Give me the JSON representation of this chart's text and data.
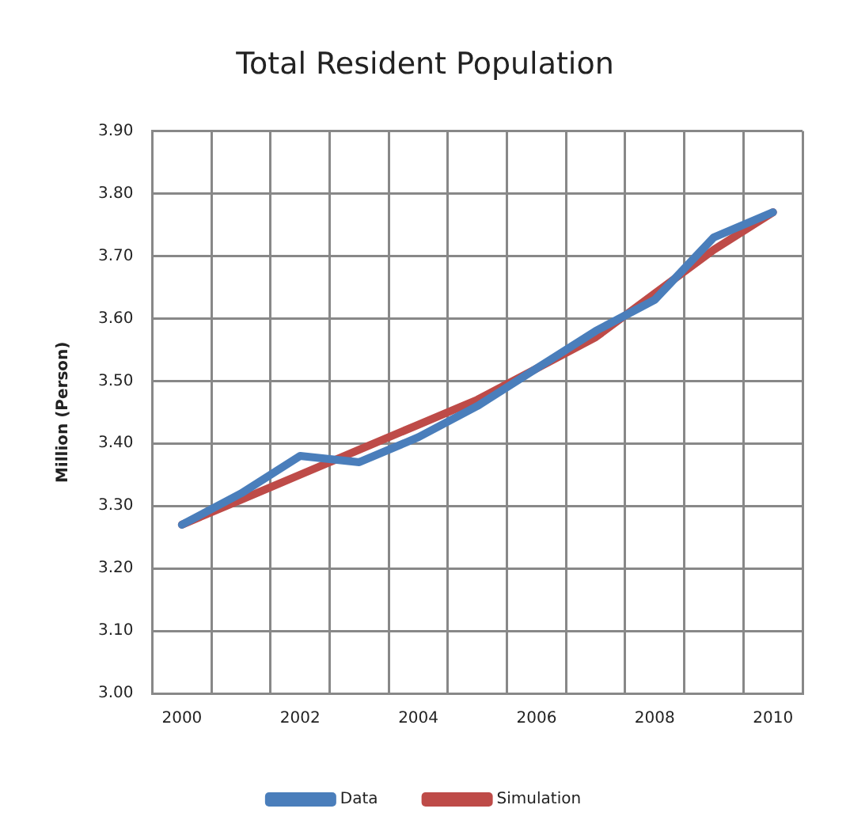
{
  "chart_data": {
    "type": "line",
    "title": "Total Resident Population",
    "ylabel": "Million (Person)",
    "categories": [
      "2000",
      null,
      "2002",
      null,
      "2004",
      null,
      "2006",
      null,
      "2008",
      null,
      "2010"
    ],
    "series": [
      {
        "name": "Data",
        "color": "#4a7ebb",
        "values": [
          3.27,
          3.32,
          3.38,
          3.37,
          3.41,
          3.46,
          3.52,
          3.58,
          3.63,
          3.73,
          3.77
        ]
      },
      {
        "name": "Simulation",
        "color": "#be4b48",
        "values": [
          3.27,
          3.31,
          3.35,
          3.39,
          3.43,
          3.47,
          3.52,
          3.57,
          3.64,
          3.71,
          3.77
        ]
      }
    ],
    "ylim": [
      3.0,
      3.9
    ],
    "yticks": [
      {
        "value": 3.0,
        "label": "3.00"
      },
      {
        "value": 3.1,
        "label": "3.10"
      },
      {
        "value": 3.2,
        "label": "3.20"
      },
      {
        "value": 3.3,
        "label": "3.30"
      },
      {
        "value": 3.4,
        "label": "3.40"
      },
      {
        "value": 3.5,
        "label": "3.50"
      },
      {
        "value": 3.6,
        "label": "3.60"
      },
      {
        "value": 3.7,
        "label": "3.70"
      },
      {
        "value": 3.8,
        "label": "3.80"
      },
      {
        "value": 3.9,
        "label": "3.90"
      }
    ],
    "grid": true,
    "legend": "bottom",
    "marker": "none",
    "line_style": "solid"
  }
}
